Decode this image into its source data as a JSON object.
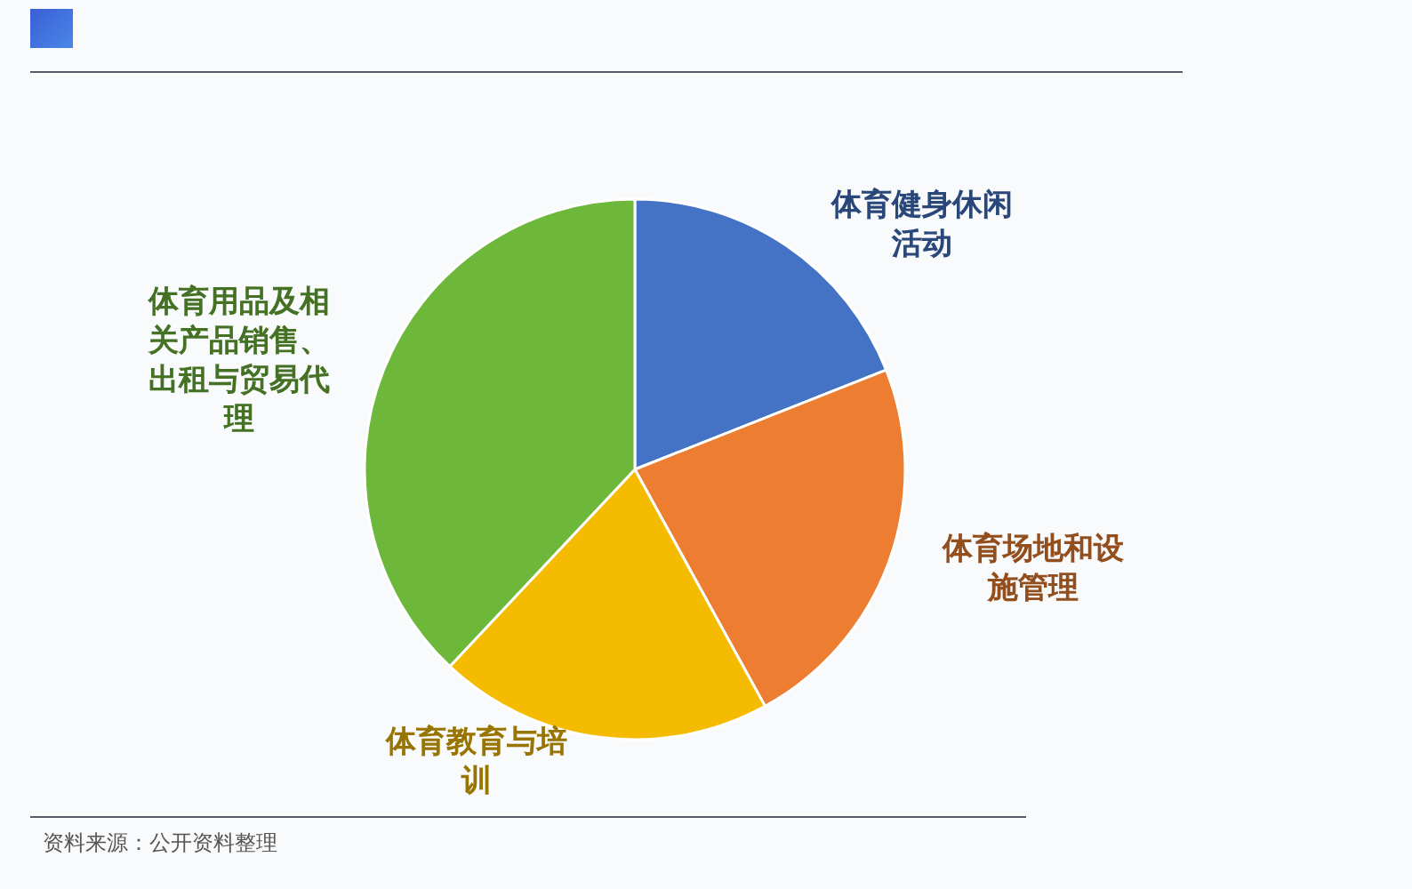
{
  "chart_data": {
    "type": "pie",
    "categories": [
      "体育健身休闲活动",
      "体育场地和设施管理",
      "体育教育与培训",
      "体育用品及相关产品销售、出租与贸易代理"
    ],
    "values": [
      19,
      23,
      20,
      38
    ],
    "colors": [
      "#4472c4",
      "#ed7d31",
      "#f5bb00",
      "#6db73a"
    ],
    "annotations": [
      "资料来源：公开资料整理"
    ]
  }
}
